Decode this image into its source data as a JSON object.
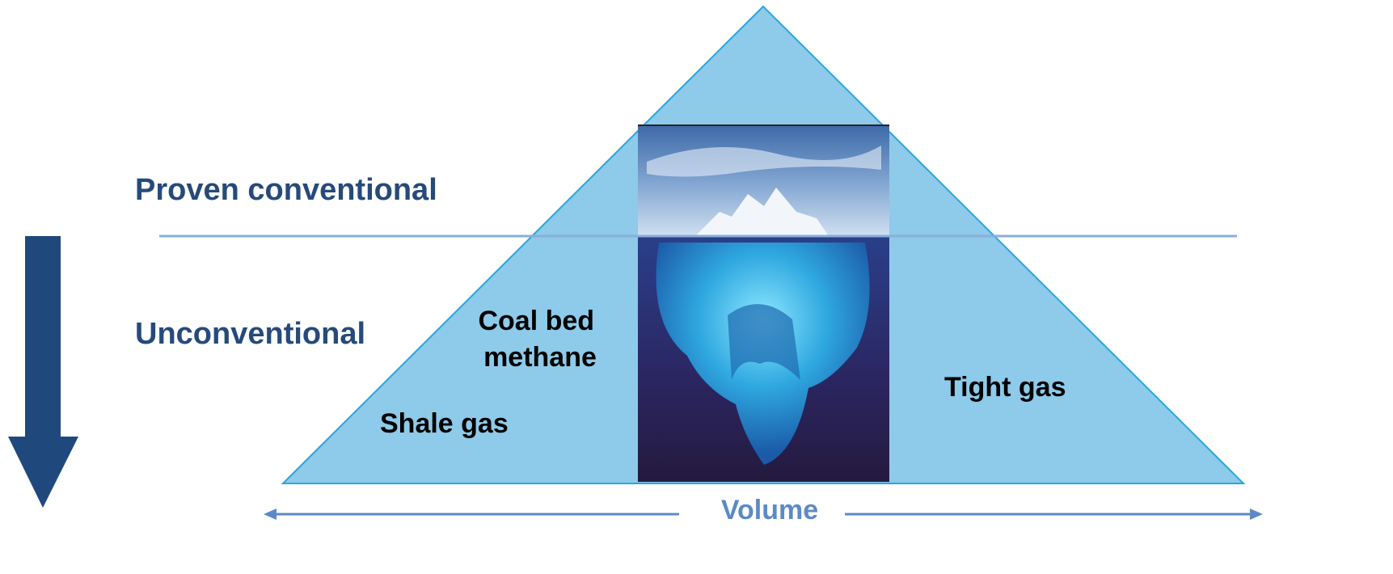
{
  "levels": {
    "upper": "Proven conventional",
    "lower": "Unconventional"
  },
  "resources": {
    "coal_bed_methane": [
      "Coal bed",
      "methane"
    ],
    "shale_gas": "Shale gas",
    "tight_gas": "Tight gas"
  },
  "axis": {
    "label": "Volume"
  }
}
